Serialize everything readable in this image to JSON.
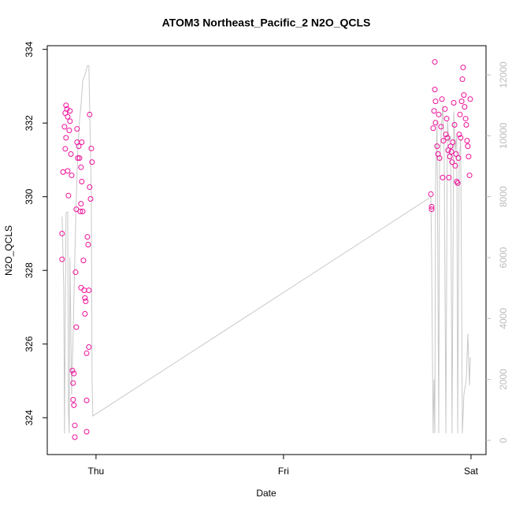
{
  "chart_data": {
    "type": "scatter",
    "title": "ATOM3 Northeast_Pacific_2 N2O_QCLS",
    "x_label": "Date",
    "y_label": "N2O_QCLS",
    "xlim": [
      -0.26,
      2.08
    ],
    "xticks": [
      {
        "value": 0,
        "label": "Thu"
      },
      {
        "value": 1,
        "label": "Fri"
      },
      {
        "value": 2,
        "label": "Sat"
      }
    ],
    "ylim": [
      323.0,
      334.1
    ],
    "yticks": [
      324,
      326,
      328,
      330,
      332,
      334
    ],
    "y2lim": [
      -466,
      12957
    ],
    "y2ticks": [
      0,
      2000,
      4000,
      6000,
      8000,
      10000,
      12000
    ],
    "series": [
      {
        "color": "#ee1199",
        "x": [
          -0.181,
          -0.181,
          -0.176,
          -0.168,
          -0.164,
          -0.16,
          -0.155,
          -0.151,
          -0.164,
          -0.16,
          -0.151,
          -0.147,
          -0.143,
          -0.139,
          -0.139,
          -0.134,
          -0.13,
          -0.126,
          -0.122,
          -0.118,
          -0.122,
          -0.118,
          -0.113,
          -0.113,
          -0.109,
          -0.105,
          -0.105,
          -0.101,
          -0.101,
          -0.097,
          -0.092,
          -0.088,
          -0.084,
          -0.08,
          -0.08,
          -0.076,
          -0.076,
          -0.08,
          -0.071,
          -0.067,
          -0.063,
          -0.059,
          -0.059,
          -0.055,
          -0.05,
          -0.05,
          -0.05,
          -0.046,
          -0.042,
          -0.038,
          -0.038,
          -0.034,
          -0.034,
          -0.029,
          -0.025,
          -0.021,
          1.786,
          1.79,
          1.79,
          1.798,
          1.803,
          1.807,
          1.807,
          1.811,
          1.811,
          1.819,
          1.824,
          1.828,
          1.832,
          1.84,
          1.845,
          1.849,
          1.853,
          1.861,
          1.866,
          1.87,
          1.874,
          1.878,
          1.882,
          1.887,
          1.891,
          1.895,
          1.899,
          1.903,
          1.908,
          1.912,
          1.916,
          1.92,
          1.924,
          1.929,
          1.933,
          1.937,
          1.941,
          1.945,
          1.95,
          1.954,
          1.958,
          1.962,
          1.966,
          1.971,
          1.975,
          1.979,
          1.983,
          1.987,
          1.992,
          1.996
        ],
        "values": [
          329.0,
          328.3,
          330.67,
          331.9,
          332.27,
          332.48,
          332.38,
          332.17,
          331.3,
          331.6,
          330.7,
          330.03,
          331.8,
          332.33,
          332.05,
          331.16,
          330.58,
          325.28,
          324.94,
          325.2,
          324.49,
          324.34,
          323.79,
          323.47,
          327.95,
          329.66,
          326.46,
          331.48,
          331.84,
          331.05,
          331.37,
          331.05,
          329.6,
          329.81,
          330.8,
          330.41,
          331.48,
          327.53,
          329.6,
          328.27,
          327.46,
          327.25,
          326.82,
          327.16,
          325.75,
          324.47,
          323.62,
          328.91,
          328.7,
          325.92,
          327.46,
          330.26,
          332.23,
          329.94,
          331.31,
          330.94,
          330.07,
          329.73,
          329.66,
          331.86,
          332.33,
          332.91,
          333.66,
          332.01,
          332.59,
          331.37,
          331.16,
          332.23,
          331.05,
          331.9,
          332.65,
          330.52,
          331.52,
          332.38,
          331.69,
          332.12,
          331.6,
          331.26,
          330.52,
          331.09,
          331.37,
          331.22,
          330.94,
          331.48,
          332.55,
          331.95,
          330.84,
          331.16,
          330.41,
          330.37,
          331.05,
          331.69,
          332.23,
          331.6,
          332.59,
          333.19,
          333.51,
          332.76,
          332.44,
          332.12,
          331.95,
          331.52,
          331.37,
          331.09,
          330.58,
          332.65
        ]
      },
      {
        "type": "line",
        "axis": "y2",
        "color": "#c8c8c8",
        "x": [
          -0.181,
          -0.172,
          -0.168,
          -0.16,
          -0.151,
          -0.147,
          -0.143,
          -0.139,
          -0.13,
          -0.122,
          -0.113,
          -0.105,
          -0.097,
          -0.088,
          -0.08,
          -0.071,
          -0.059,
          -0.046,
          -0.038,
          -0.025,
          -0.021,
          -0.017,
          1.786,
          1.79,
          1.794,
          1.798,
          1.803,
          1.807,
          1.811,
          1.819,
          1.828,
          1.832,
          1.84,
          1.849,
          1.857,
          1.866,
          1.874,
          1.882,
          1.891,
          1.899,
          1.908,
          1.916,
          1.924,
          1.929,
          1.937,
          1.945,
          1.954,
          1.962,
          1.975,
          1.983,
          1.992,
          1.996,
          2.0
        ],
        "values": [
          7350,
          5000,
          230,
          7470,
          7500,
          1000,
          230,
          6000,
          1500,
          3500,
          6000,
          8000,
          9500,
          10500,
          11000,
          11800,
          12000,
          12300,
          12300,
          8000,
          2000,
          800,
          7990,
          6000,
          3000,
          230,
          2000,
          230,
          8500,
          10500,
          230,
          9000,
          10000,
          11000,
          9500,
          230,
          10500,
          9800,
          10000,
          230,
          10800,
          9500,
          10000,
          230,
          9200,
          9900,
          230,
          1500,
          2000,
          3500,
          1800,
          2700,
          2690
        ]
      }
    ]
  }
}
